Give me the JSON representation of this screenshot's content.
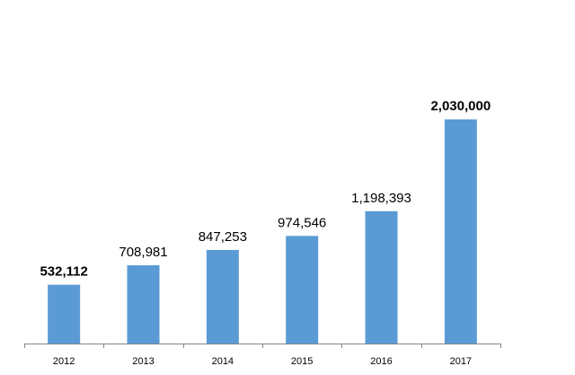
{
  "chart_data": {
    "type": "bar",
    "title": "",
    "xlabel": "",
    "ylabel": "",
    "categories": [
      "2012",
      "2013",
      "2014",
      "2015",
      "2016",
      "2017"
    ],
    "values": [
      532112,
      708981,
      847253,
      974546,
      1198393,
      2030000
    ],
    "data_labels": [
      "532,112",
      "708,981",
      "847,253",
      "974,546",
      "1,198,393",
      "2,030,000"
    ],
    "bold_labels": [
      "2012",
      "2017"
    ],
    "ylim": [
      0,
      2500000
    ],
    "bar_color": "#5B9BD5",
    "axis_color": "#868686",
    "grid": false,
    "legend": "none"
  }
}
